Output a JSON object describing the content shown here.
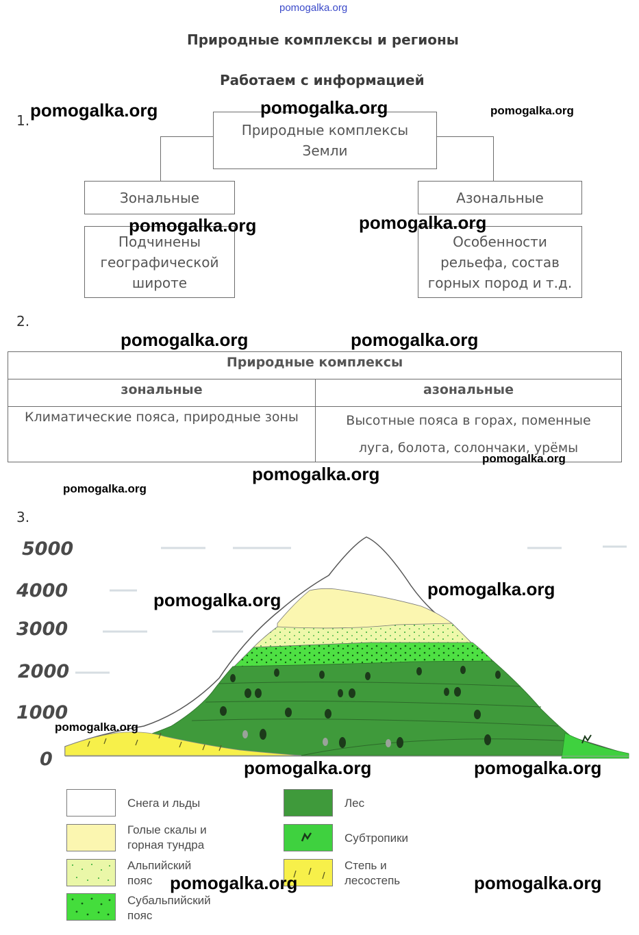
{
  "top_link": "pomogalka.org",
  "title": "Природные комплексы и регионы",
  "subtitle": "Работаем с информацией",
  "section1": {
    "number": "1.",
    "root": "Природные комплексы Земли",
    "left_head": "Зональные",
    "right_head": "Азональные",
    "left_desc": "Подчинены географической широте",
    "right_desc": "Особенности рельефа, состав горных пород и т.д."
  },
  "section2": {
    "number": "2.",
    "table_title": "Природные комплексы",
    "col_left": "зональные",
    "col_right": "азональные",
    "cell_left": "Климатические пояса, природные зоны",
    "cell_right": "Высотные пояса в горах,  поменные луга, болота, солончаки, урёмы"
  },
  "section3": {
    "number": "3.",
    "y_ticks": [
      "5000",
      "4000",
      "3000",
      "2000",
      "1000",
      "0"
    ],
    "legend": [
      {
        "label": "Снега и льды",
        "color": "#ffffff"
      },
      {
        "label": "Голые скалы и горная тундра",
        "color": "#fbf6b0"
      },
      {
        "label": "Альпийский пояс",
        "color": "#eaf7a8"
      },
      {
        "label": "Субальпийский пояс",
        "color": "#44dd3c"
      },
      {
        "label": "Лес",
        "color": "#3f9a3b"
      },
      {
        "label": "Субтропики",
        "color": "#3fd13f"
      },
      {
        "label": "Степь и лесостепь",
        "color": "#f7f04a"
      }
    ]
  },
  "watermark": "pomogalka.org"
}
